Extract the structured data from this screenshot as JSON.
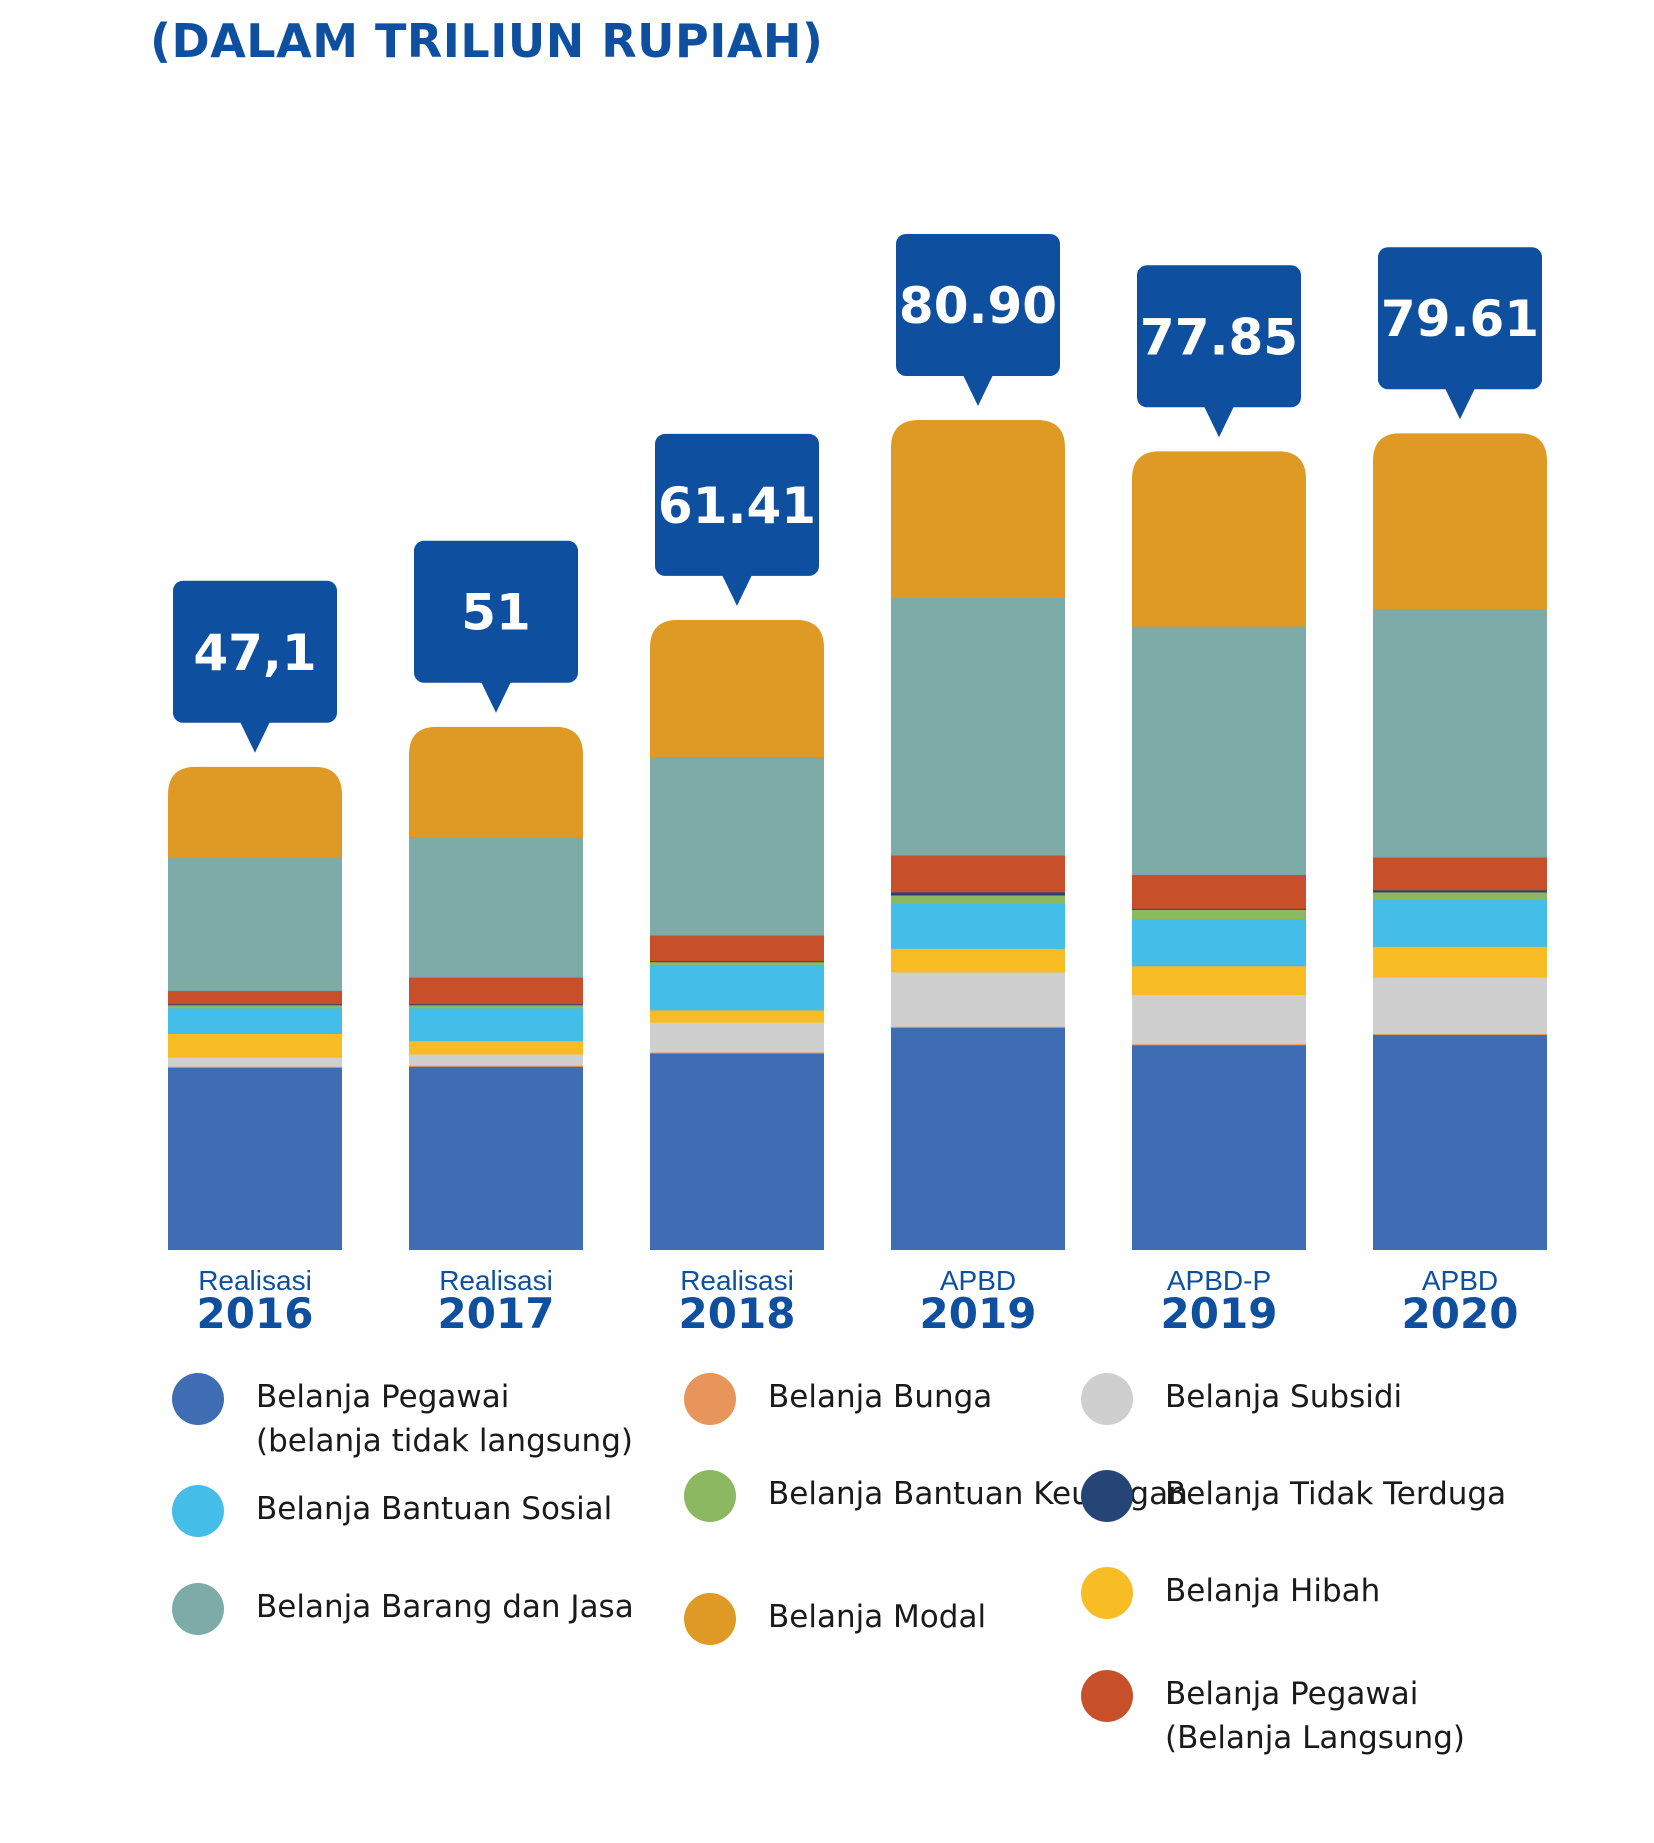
{
  "title": "(DALAM TRILIUN RUPIAH)",
  "chart_data": {
    "type": "bar",
    "stacked": true,
    "unit": "triliun rupiah",
    "categories": [
      {
        "label_top": "Realisasi",
        "label_year": "2016",
        "total_label": "47,1"
      },
      {
        "label_top": "Realisasi",
        "label_year": "2017",
        "total_label": "51"
      },
      {
        "label_top": "Realisasi",
        "label_year": "2018",
        "total_label": "61.41"
      },
      {
        "label_top": "APBD",
        "label_year": "2019",
        "total_label": "80.90"
      },
      {
        "label_top": "APBD-P",
        "label_year": "2019",
        "total_label": "77.85"
      },
      {
        "label_top": "APBD",
        "label_year": "2020",
        "total_label": "79.61"
      }
    ],
    "totals": [
      47.1,
      51,
      61.41,
      80.9,
      77.85,
      79.61
    ],
    "series": [
      {
        "name": "Belanja Pegawai\n(belanja tidak langsung)",
        "color": "#3f6db4",
        "values": [
          17.8,
          17.9,
          19.2,
          21.7,
          20.0,
          21.0
        ]
      },
      {
        "name": "Belanja Bunga",
        "color": "#e8955b",
        "values": [
          0.1,
          0.1,
          0.1,
          0.1,
          0.1,
          0.1
        ]
      },
      {
        "name": "Belanja Subsidi",
        "color": "#cfcfcf",
        "values": [
          0.9,
          1.1,
          2.9,
          5.3,
          4.8,
          5.5
        ]
      },
      {
        "name": "Belanja Hibah",
        "color": "#f8bc24",
        "values": [
          2.3,
          1.3,
          1.2,
          2.3,
          2.8,
          3.0
        ]
      },
      {
        "name": "Belanja Bantuan Sosial",
        "color": "#44bde9",
        "values": [
          2.5,
          3.2,
          4.4,
          4.4,
          4.6,
          4.6
        ]
      },
      {
        "name": "Belanja Bantuan Keuangan",
        "color": "#8cb862",
        "values": [
          0.3,
          0.3,
          0.3,
          0.8,
          0.9,
          0.7
        ]
      },
      {
        "name": "Belanja Tidak Terduga",
        "color": "#264577",
        "values": [
          0.1,
          0.1,
          0.1,
          0.3,
          0.1,
          0.2
        ]
      },
      {
        "name": "Belanja Pegawai\n(Belanja Langsung)",
        "color": "#c7502a",
        "values": [
          1.3,
          2.6,
          2.5,
          3.6,
          3.3,
          3.2
        ]
      },
      {
        "name": "Belanja Barang dan Jasa",
        "color": "#7daba8",
        "values": [
          13.0,
          13.7,
          17.4,
          25.1,
          24.2,
          24.2
        ]
      },
      {
        "name": "Belanja Modal",
        "color": "#de9a25",
        "values": [
          8.8,
          10.7,
          13.31,
          17.3,
          17.05,
          17.11
        ]
      }
    ],
    "legend": {
      "placement": "bottom",
      "columns": [
        [
          "Belanja Pegawai\n(belanja tidak langsung)",
          "Belanja Bantuan Sosial",
          "Belanja Barang dan Jasa"
        ],
        [
          "Belanja Bunga",
          "Belanja Bantuan Keuangan",
          "Belanja Modal"
        ],
        [
          "Belanja Subsidi",
          "Belanja Tidak Terduga",
          "Belanja Hibah",
          "Belanja Pegawai\n(Belanja Langsung)"
        ]
      ]
    },
    "colors": {
      "callout": "#0f4fa0",
      "axis_label": "#0f4fa0"
    },
    "grid": false
  }
}
